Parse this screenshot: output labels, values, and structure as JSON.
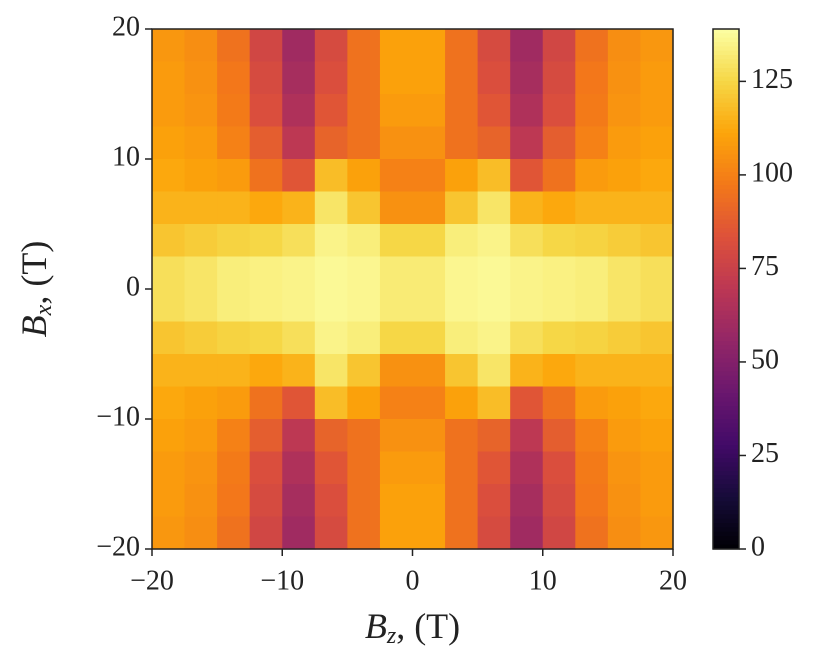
{
  "chart_data": {
    "type": "heatmap",
    "xlabel": [
      "B",
      "z",
      ", (T)"
    ],
    "ylabel": [
      "B",
      "x",
      ", (T)"
    ],
    "xlim": [
      -20,
      20
    ],
    "ylim": [
      -20,
      20
    ],
    "xticks": [
      {
        "value": -20,
        "label": "−20"
      },
      {
        "value": -10,
        "label": "−10"
      },
      0,
      10,
      20
    ],
    "yticks": [
      {
        "value": -20,
        "label": "−20"
      },
      {
        "value": -10,
        "label": "−10"
      },
      0,
      10,
      20
    ],
    "colormap": "inferno",
    "zlim": [
      0,
      139
    ],
    "zticks": [
      0,
      25,
      50,
      75,
      100,
      125
    ],
    "z": [
      [
        107,
        104,
        95,
        78,
        60,
        80,
        95,
        110,
        110,
        95,
        80,
        60,
        78,
        95,
        104,
        107
      ],
      [
        108,
        105,
        97,
        80,
        62,
        82,
        95,
        110,
        110,
        95,
        82,
        62,
        80,
        97,
        105,
        108
      ],
      [
        108,
        106,
        98,
        82,
        65,
        85,
        95,
        108,
        108,
        95,
        85,
        65,
        82,
        98,
        106,
        108
      ],
      [
        110,
        108,
        100,
        88,
        70,
        90,
        95,
        105,
        105,
        95,
        90,
        70,
        88,
        100,
        108,
        110
      ],
      [
        112,
        110,
        108,
        95,
        85,
        118,
        110,
        100,
        100,
        110,
        118,
        85,
        95,
        108,
        110,
        112
      ],
      [
        115,
        115,
        115,
        112,
        115,
        130,
        120,
        105,
        105,
        120,
        130,
        115,
        112,
        115,
        115,
        115
      ],
      [
        120,
        122,
        124,
        125,
        128,
        135,
        133,
        125,
        125,
        133,
        135,
        128,
        125,
        124,
        122,
        120
      ],
      [
        128,
        130,
        133,
        134,
        135,
        137,
        136,
        132,
        132,
        136,
        137,
        135,
        134,
        133,
        130,
        128
      ],
      [
        128,
        130,
        133,
        134,
        135,
        137,
        136,
        132,
        132,
        136,
        137,
        135,
        134,
        133,
        130,
        128
      ],
      [
        120,
        122,
        124,
        125,
        128,
        135,
        133,
        125,
        125,
        133,
        135,
        128,
        125,
        124,
        122,
        120
      ],
      [
        115,
        115,
        115,
        112,
        115,
        130,
        120,
        105,
        105,
        120,
        130,
        115,
        112,
        115,
        115,
        115
      ],
      [
        112,
        110,
        108,
        95,
        85,
        118,
        110,
        100,
        100,
        110,
        118,
        85,
        95,
        108,
        110,
        112
      ],
      [
        110,
        108,
        100,
        88,
        70,
        90,
        95,
        105,
        105,
        95,
        90,
        70,
        88,
        100,
        108,
        110
      ],
      [
        108,
        106,
        98,
        82,
        65,
        85,
        95,
        108,
        108,
        95,
        85,
        65,
        82,
        98,
        106,
        108
      ],
      [
        108,
        105,
        97,
        80,
        62,
        82,
        95,
        110,
        110,
        95,
        82,
        62,
        80,
        97,
        105,
        108
      ],
      [
        107,
        104,
        95,
        78,
        60,
        80,
        95,
        110,
        110,
        95,
        80,
        60,
        78,
        95,
        104,
        107
      ]
    ]
  }
}
